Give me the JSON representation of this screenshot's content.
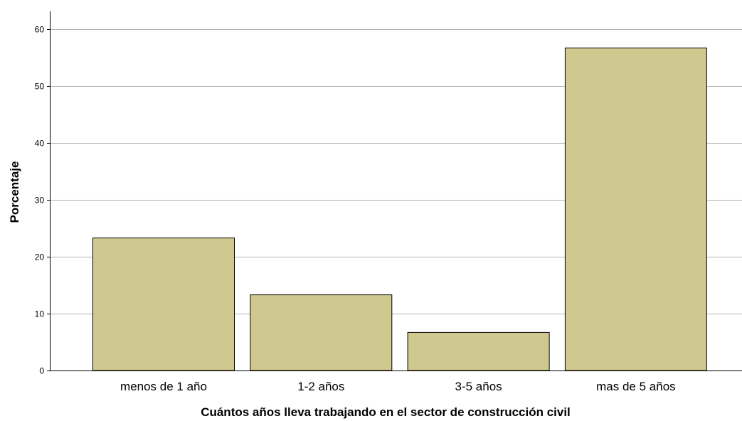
{
  "chart_data": {
    "type": "bar",
    "title": "",
    "xlabel": "Cuántos años lleva trabajando en el sector de construcción civil",
    "ylabel": "Porcentaje",
    "categories": [
      "menos de 1 año",
      "1-2 años",
      "3-5 años",
      "mas de 5 años"
    ],
    "values": [
      23.3,
      13.3,
      6.7,
      56.7
    ],
    "ylim": [
      0,
      60
    ],
    "yticks": [
      0,
      10,
      20,
      30,
      40,
      50,
      60
    ],
    "grid": true,
    "bar_color": "#cfc98f",
    "bar_edge_color": "#000000",
    "grid_color": "#b3b3b3"
  }
}
